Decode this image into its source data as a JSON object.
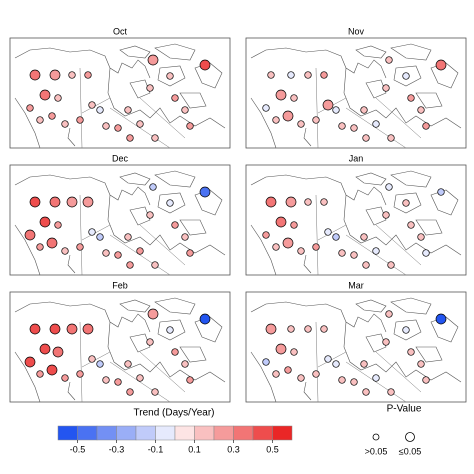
{
  "panels": [
    {
      "title": "Oct",
      "values": [
        0.3,
        0.2,
        0.1,
        0.2,
        0.3,
        0.2,
        0.1,
        0.1,
        0.2,
        0.1,
        0.2,
        0.1,
        -0.1,
        0.1,
        0.2,
        0.1,
        0.1,
        0.1,
        0.2,
        0.1,
        0.2,
        0.1,
        0.2,
        0.4,
        0.1,
        0.2
      ],
      "significant": [
        true,
        true,
        false,
        false,
        true,
        false,
        false,
        false,
        false,
        false,
        false,
        false,
        false,
        false,
        false,
        false,
        false,
        false,
        true,
        false,
        false,
        false,
        false,
        true,
        false,
        false
      ]
    },
    {
      "title": "Nov",
      "values": [
        0.1,
        -0.1,
        0.1,
        0.2,
        0.2,
        -0.1,
        0.1,
        0.1,
        0.2,
        0.1,
        0.1,
        0.2,
        -0.1,
        0.1,
        0.1,
        0.1,
        -0.1,
        0.1,
        0.1,
        -0.1,
        0.2,
        0.1,
        0.2,
        0.3,
        0.1,
        0.1
      ],
      "significant": [
        false,
        false,
        false,
        false,
        true,
        false,
        false,
        false,
        true,
        false,
        false,
        true,
        false,
        false,
        false,
        false,
        false,
        false,
        false,
        false,
        false,
        false,
        false,
        true,
        false,
        false
      ]
    },
    {
      "title": "Dec",
      "values": [
        0.4,
        0.3,
        0.2,
        0.2,
        0.4,
        0.3,
        0.2,
        0.2,
        0.3,
        0.1,
        0.2,
        -0.1,
        -0.2,
        0.1,
        0.2,
        0.1,
        0.2,
        0.1,
        -0.2,
        -0.1,
        0.2,
        0.1,
        0.2,
        -0.4,
        0.1,
        0.2
      ],
      "significant": [
        true,
        true,
        true,
        true,
        true,
        true,
        false,
        false,
        true,
        false,
        false,
        false,
        false,
        false,
        false,
        false,
        false,
        false,
        false,
        false,
        false,
        false,
        false,
        true,
        false,
        false
      ]
    },
    {
      "title": "Jan",
      "values": [
        0.3,
        0.2,
        0.1,
        0.1,
        0.3,
        0.2,
        0.2,
        0.1,
        0.2,
        0.1,
        0.2,
        -0.1,
        -0.2,
        0.1,
        0.1,
        0.1,
        -0.1,
        0.1,
        -0.1,
        0.1,
        0.1,
        0.1,
        -0.1,
        -0.2,
        0.1,
        0.1
      ],
      "significant": [
        true,
        true,
        false,
        false,
        true,
        false,
        false,
        false,
        true,
        false,
        false,
        false,
        false,
        false,
        false,
        false,
        false,
        false,
        false,
        false,
        false,
        false,
        false,
        false,
        false,
        false
      ]
    },
    {
      "title": "Feb",
      "values": [
        0.4,
        0.4,
        0.3,
        0.3,
        0.4,
        0.4,
        0.3,
        0.2,
        0.4,
        0.2,
        0.2,
        0.1,
        -0.2,
        0.1,
        0.2,
        0.1,
        0.1,
        0.1,
        0.2,
        -0.1,
        0.2,
        0.1,
        0.2,
        -0.5,
        0.1,
        0.2
      ],
      "significant": [
        true,
        true,
        true,
        true,
        true,
        true,
        true,
        false,
        true,
        false,
        false,
        false,
        false,
        false,
        false,
        false,
        false,
        false,
        true,
        false,
        false,
        false,
        false,
        true,
        false,
        false
      ]
    },
    {
      "title": "Mar",
      "values": [
        0.2,
        0.1,
        0.1,
        0.1,
        0.2,
        -0.2,
        0.1,
        0.1,
        0.2,
        0.1,
        0.1,
        -0.1,
        -0.1,
        0.1,
        0.1,
        0.1,
        -0.1,
        0.1,
        0.1,
        -0.1,
        0.1,
        0.1,
        0.1,
        -0.5,
        0.1,
        0.1
      ],
      "significant": [
        true,
        false,
        false,
        false,
        true,
        false,
        false,
        false,
        false,
        false,
        false,
        false,
        false,
        false,
        false,
        false,
        false,
        false,
        false,
        false,
        false,
        false,
        false,
        true,
        false,
        false
      ]
    }
  ],
  "colorbar": {
    "title": "Trend (Days/Year)",
    "lim": [
      -0.6,
      0.6
    ],
    "colors": [
      "#2355f0",
      "#4a72f2",
      "#7390f4",
      "#9aaef7",
      "#c0cbfa",
      "#e6eafd",
      "#fde4e4",
      "#f9c0c0",
      "#f59b9b",
      "#f27575",
      "#ee4d4d",
      "#ea2626"
    ],
    "ticks": [
      -0.5,
      -0.3,
      -0.1,
      0.1,
      0.3,
      0.5
    ]
  },
  "pvalue_legend": {
    "title": "P-Value",
    "labels": [
      ">0.05",
      "≤0.05"
    ]
  }
}
